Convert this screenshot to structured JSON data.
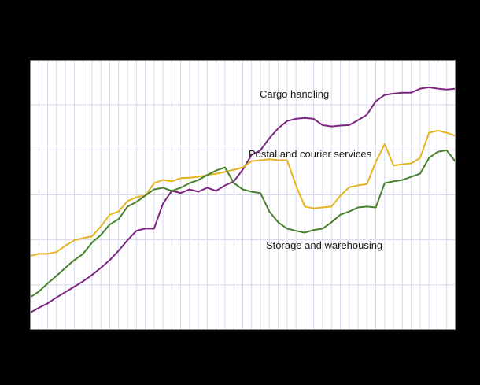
{
  "chart_data": {
    "type": "line",
    "title": "",
    "xlabel": "",
    "ylabel": "",
    "x_count": 49,
    "ylim": [
      80,
      140
    ],
    "y_gridline_step": 10,
    "grid": {
      "vertical_color": "#d6d8ec",
      "horizontal_color": "#d6d8ec",
      "border_color": "#8a8a8a"
    },
    "background": {
      "page": "#000000",
      "plot": "#ffffff"
    },
    "legend_position": "inline-labels",
    "axis_tick_labels_visible": false,
    "series": [
      {
        "name": "Cargo handling",
        "color": "#7d2483",
        "values": [
          83.8,
          84.9,
          85.9,
          87.2,
          88.4,
          89.6,
          90.8,
          92.2,
          93.8,
          95.5,
          97.6,
          99.9,
          102.0,
          102.5,
          102.5,
          108.1,
          110.9,
          110.4,
          111.2,
          110.7,
          111.6,
          110.9,
          112.1,
          113.0,
          115.6,
          118.9,
          119.9,
          122.6,
          124.8,
          126.4,
          126.9,
          127.1,
          126.9,
          125.5,
          125.2,
          125.4,
          125.5,
          126.6,
          127.8,
          130.8,
          132.2,
          132.5,
          132.7,
          132.7,
          133.6,
          133.9,
          133.6,
          133.4,
          133.6
        ]
      },
      {
        "name": "Postal and courier services",
        "color": "#e6b321",
        "values": [
          96.4,
          96.9,
          96.9,
          97.3,
          98.7,
          99.9,
          100.4,
          100.8,
          103.0,
          105.6,
          106.3,
          108.6,
          109.5,
          109.8,
          112.6,
          113.3,
          113.0,
          113.7,
          113.8,
          114.0,
          114.4,
          114.7,
          115.1,
          115.6,
          116.1,
          117.5,
          117.7,
          117.9,
          117.7,
          117.7,
          112.1,
          107.4,
          107.0,
          107.2,
          107.4,
          109.8,
          111.7,
          112.1,
          112.4,
          117.3,
          121.3,
          116.5,
          116.8,
          117.0,
          118.2,
          123.8,
          124.3,
          123.8,
          123.1
        ]
      },
      {
        "name": "Storage and warehousing",
        "color": "#48812b",
        "values": [
          87.2,
          88.5,
          90.3,
          92.0,
          93.8,
          95.5,
          96.9,
          99.4,
          101.1,
          103.4,
          104.6,
          107.4,
          108.4,
          109.8,
          111.2,
          111.6,
          110.9,
          111.6,
          112.6,
          113.3,
          114.4,
          115.4,
          116.1,
          112.6,
          111.2,
          110.7,
          110.4,
          106.3,
          103.9,
          102.5,
          102.0,
          101.6,
          102.2,
          102.5,
          103.9,
          105.6,
          106.3,
          107.2,
          107.4,
          107.2,
          112.6,
          113.0,
          113.3,
          114.0,
          114.7,
          118.2,
          119.6,
          119.9,
          117.3
        ]
      }
    ]
  }
}
